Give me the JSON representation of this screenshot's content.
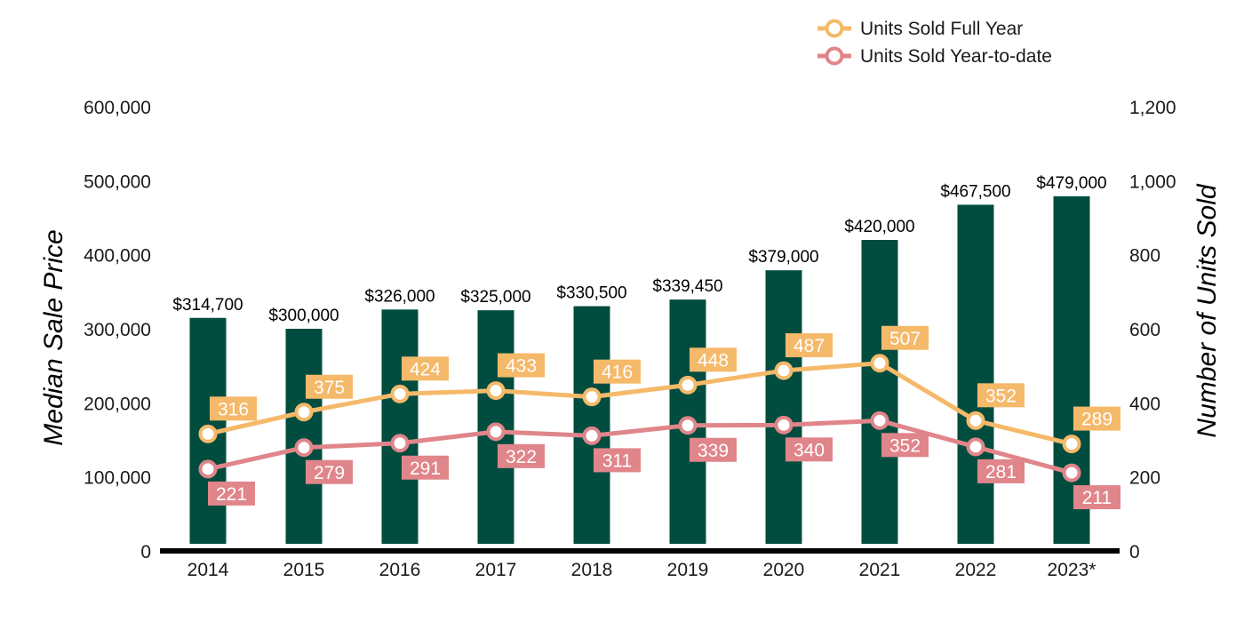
{
  "chart_data": {
    "type": "bar",
    "categories": [
      "2014",
      "2015",
      "2016",
      "2017",
      "2018",
      "2019",
      "2020",
      "2021",
      "2022",
      "2023*"
    ],
    "bar_series": {
      "axis": "left",
      "values": [
        314700,
        300000,
        326000,
        325000,
        330500,
        339450,
        379000,
        420000,
        467500,
        479000
      ],
      "labels": [
        "$314,700",
        "$300,000",
        "$326,000",
        "$325,000",
        "$330,500",
        "$339,450",
        "$379,000",
        "$420,000",
        "$467,500",
        "$479,000"
      ],
      "color": "#004d40"
    },
    "line_series": [
      {
        "name": "Units Sold Full Year",
        "type": "line",
        "axis": "right",
        "values": [
          316,
          375,
          424,
          433,
          416,
          448,
          487,
          507,
          352,
          289
        ],
        "color": "#f5b96a",
        "label_position": "above"
      },
      {
        "name": "Units Sold Year-to-date",
        "type": "line",
        "axis": "right",
        "values": [
          221,
          279,
          291,
          322,
          311,
          339,
          340,
          352,
          281,
          211
        ],
        "color": "#e0858a",
        "label_position": "below"
      }
    ],
    "ylabel": "Median Sale Price",
    "y2label": "Number of Units Sold",
    "ylim": [
      0,
      600000
    ],
    "y2lim": [
      0,
      1200
    ],
    "yticks": [
      "0",
      "100,000",
      "200,000",
      "300,000",
      "400,000",
      "500,000",
      "600,000"
    ],
    "y2ticks": [
      "0",
      "200",
      "400",
      "600",
      "800",
      "1,000",
      "1,200"
    ],
    "legend_position": "top-right",
    "grid": false
  }
}
